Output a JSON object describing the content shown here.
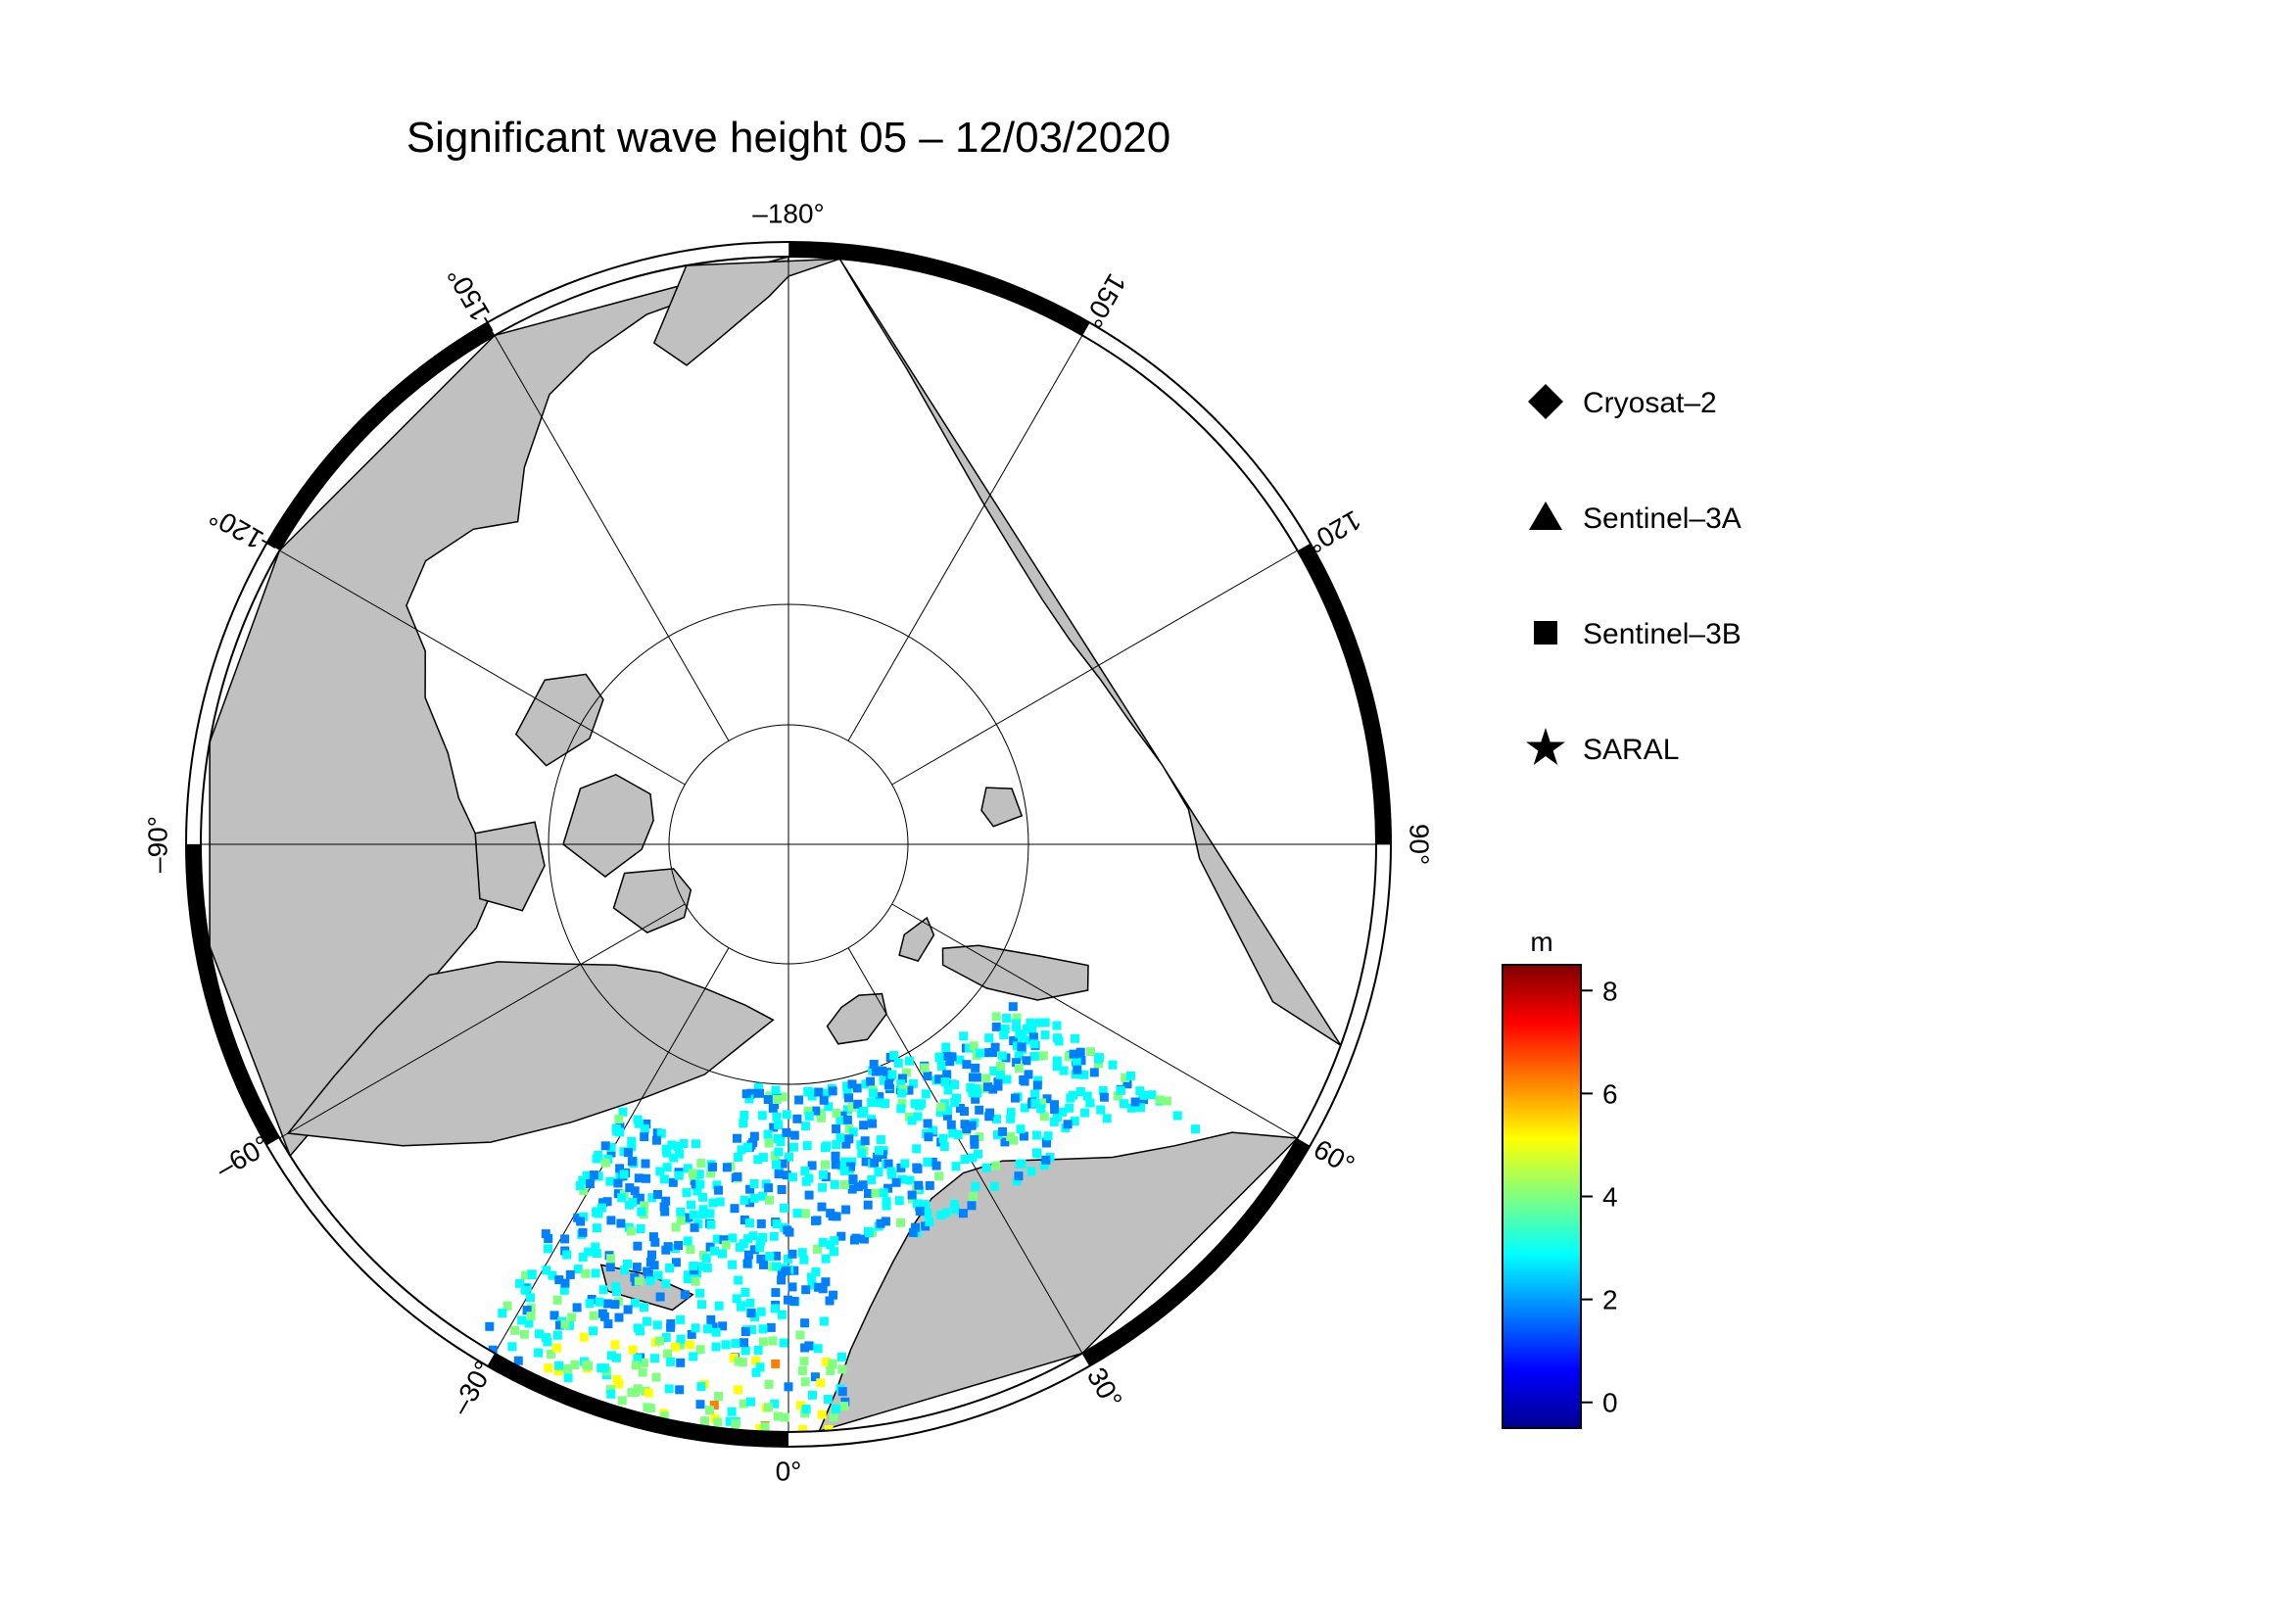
{
  "title": "Significant wave height 05 – 12/03/2020",
  "longitude_labels": [
    {
      "deg": -180,
      "text": "–180°"
    },
    {
      "deg": 150,
      "text": "150°"
    },
    {
      "deg": 120,
      "text": "120°"
    },
    {
      "deg": 90,
      "text": "90°"
    },
    {
      "deg": 60,
      "text": "60°"
    },
    {
      "deg": 30,
      "text": "30°"
    },
    {
      "deg": 0,
      "text": "0°"
    },
    {
      "deg": -30,
      "text": "–30°"
    },
    {
      "deg": -60,
      "text": "–60°"
    },
    {
      "deg": -90,
      "text": "–90°"
    },
    {
      "deg": -120,
      "text": "–120°"
    },
    {
      "deg": -150,
      "text": "–150°"
    }
  ],
  "legend": [
    {
      "symbol": "diamond",
      "label": "Cryosat–2"
    },
    {
      "symbol": "triangle",
      "label": "Sentinel–3A"
    },
    {
      "symbol": "square",
      "label": "Sentinel–3B"
    },
    {
      "symbol": "star",
      "label": "SARAL"
    }
  ],
  "colorbar": {
    "unit": "m",
    "min": -0.5,
    "max": 8.5,
    "ticks": [
      {
        "value": 0,
        "label": "0"
      },
      {
        "value": 2,
        "label": "2"
      },
      {
        "value": 4,
        "label": "4"
      },
      {
        "value": 6,
        "label": "6"
      },
      {
        "value": 8,
        "label": "8"
      }
    ],
    "colormap": [
      "#00008f",
      "#0000ff",
      "#0080ff",
      "#00ffff",
      "#80ff80",
      "#ffff00",
      "#ff8000",
      "#ff0000",
      "#800000"
    ]
  },
  "colors": {
    "land": "#c0c0c0",
    "ocean": "#ffffff",
    "coast": "#000000"
  }
}
